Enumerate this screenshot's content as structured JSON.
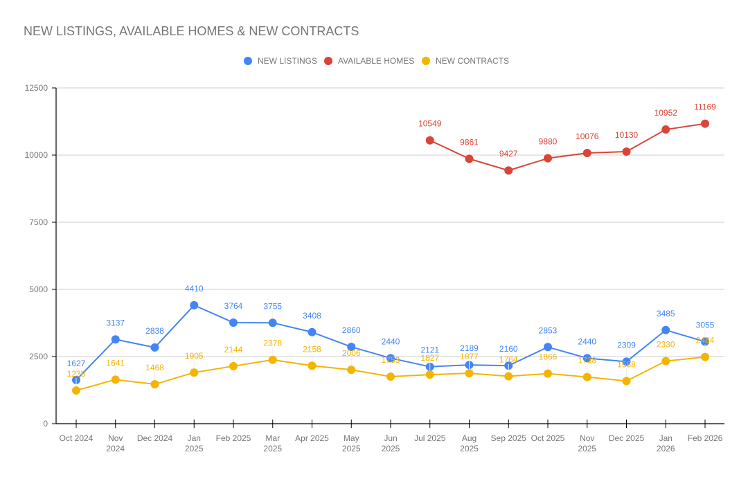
{
  "chart_data": {
    "type": "line",
    "title": "NEW LISTINGS, AVAILABLE HOMES & NEW CONTRACTS",
    "xlabel": "",
    "ylabel": "",
    "ylim": [
      0,
      12500
    ],
    "yticks": [
      0,
      2500,
      5000,
      7500,
      10000,
      12500
    ],
    "grid": true,
    "legend_position": "top-center",
    "categories": [
      [
        "Oct 2024"
      ],
      [
        "Nov",
        "2024"
      ],
      [
        "Dec 2024"
      ],
      [
        "Jan",
        "2025"
      ],
      [
        "Feb 2025"
      ],
      [
        "Mar",
        "2025"
      ],
      [
        "Apr 2025"
      ],
      [
        "May",
        "2025"
      ],
      [
        "Jun",
        "2025"
      ],
      [
        "Jul 2025"
      ],
      [
        "Aug",
        "2025"
      ],
      [
        "Sep 2025"
      ],
      [
        "Oct 2025"
      ],
      [
        "Nov",
        "2025"
      ],
      [
        "Dec 2025"
      ],
      [
        "Jan",
        "2026"
      ],
      [
        "Feb 2026"
      ]
    ],
    "series": [
      {
        "name": "NEW LISTINGS",
        "color": "#4285f4",
        "values": [
          1627,
          3137,
          2838,
          4410,
          3764,
          3755,
          3408,
          2860,
          2440,
          2121,
          2189,
          2160,
          2853,
          2440,
          2309,
          3485,
          3055
        ]
      },
      {
        "name": "AVAILABLE HOMES",
        "color": "#db4437",
        "values": [
          null,
          null,
          null,
          null,
          null,
          null,
          null,
          null,
          null,
          10549,
          9861,
          9427,
          9880,
          10076,
          10130,
          10952,
          11169
        ]
      },
      {
        "name": "NEW CONTRACTS",
        "color": "#f4b400",
        "values": [
          1238,
          1641,
          1468,
          1905,
          2144,
          2378,
          2158,
          2006,
          1753,
          1827,
          1877,
          1764,
          1866,
          1738,
          1588,
          2330,
          2484
        ]
      }
    ]
  }
}
